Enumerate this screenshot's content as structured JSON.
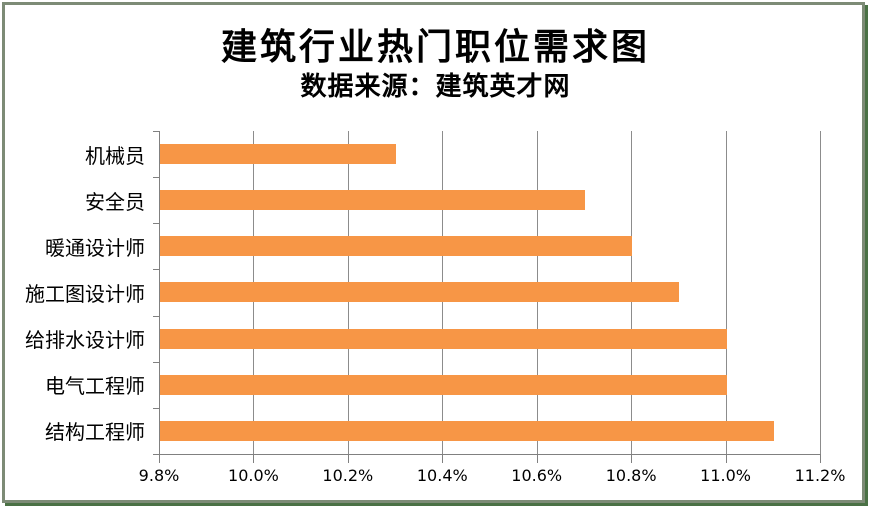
{
  "header": {
    "title": "建筑行业热门职位需求图",
    "subtitle": "数据来源：建筑英才网"
  },
  "colors": {
    "bar": "#F79646",
    "gridline": "#8c8c8c",
    "axis": "#808080",
    "frame_border": "#7d8b76",
    "frame_shadow": "#4a7145",
    "text": "#000000",
    "background": "#ffffff"
  },
  "chart_data": {
    "type": "bar",
    "orientation": "horizontal",
    "title": "建筑行业热门职位需求图",
    "subtitle": "数据来源：建筑英才网",
    "categories": [
      "机械员",
      "安全员",
      "暖通设计师",
      "施工图设计师",
      "给排水设计师",
      "电气工程师",
      "结构工程师"
    ],
    "values": [
      10.3,
      10.7,
      10.8,
      10.9,
      11.0,
      11.0,
      11.1
    ],
    "value_unit": "%",
    "xlim": [
      9.8,
      11.2
    ],
    "xticks": [
      {
        "value": 9.8,
        "label": "9.8%"
      },
      {
        "value": 10.0,
        "label": "10.0%"
      },
      {
        "value": 10.2,
        "label": "10.2%"
      },
      {
        "value": 10.4,
        "label": "10.4%"
      },
      {
        "value": 10.6,
        "label": "10.6%"
      },
      {
        "value": 10.8,
        "label": "10.8%"
      },
      {
        "value": 11.0,
        "label": "11.0%"
      },
      {
        "value": 11.2,
        "label": "11.2%"
      }
    ],
    "grid": true,
    "legend": false,
    "xlabel": "",
    "ylabel": ""
  }
}
